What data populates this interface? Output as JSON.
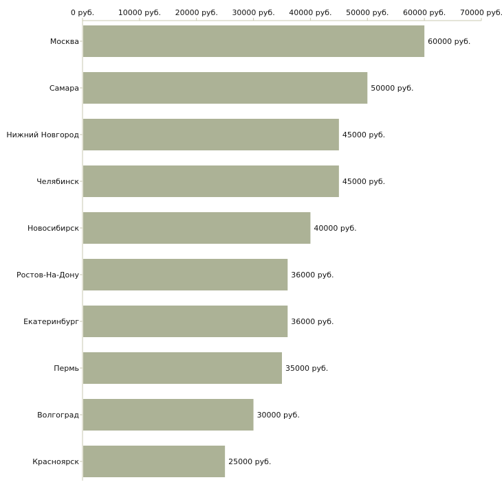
{
  "chart_data": {
    "type": "bar",
    "orientation": "horizontal",
    "title": "",
    "xlabel": "",
    "ylabel": "",
    "xlim": [
      0,
      70000
    ],
    "unit": "руб.",
    "ticks": [
      "0 руб.",
      "10000 руб.",
      "20000 руб.",
      "30000 руб.",
      "40000 руб.",
      "50000 руб.",
      "60000 руб.",
      "70000 руб."
    ],
    "tick_values": [
      0,
      10000,
      20000,
      30000,
      40000,
      50000,
      60000,
      70000
    ],
    "categories": [
      "Москва",
      "Самара",
      "Нижний Новгород",
      "Челябинск",
      "Новосибирск",
      "Ростов-На-Дону",
      "Екатеринбург",
      "Пермь",
      "Волгоград",
      "Красноярск"
    ],
    "values": [
      60000,
      50000,
      45000,
      45000,
      40000,
      36000,
      36000,
      35000,
      30000,
      25000
    ],
    "labels": [
      "60000 руб.",
      "50000 руб.",
      "45000 руб.",
      "45000 руб.",
      "40000 руб.",
      "36000 руб.",
      "36000 руб.",
      "35000 руб.",
      "30000 руб.",
      "25000 руб."
    ],
    "colors": {
      "bar": "#acb296",
      "axis": "#c8c8b0"
    }
  }
}
